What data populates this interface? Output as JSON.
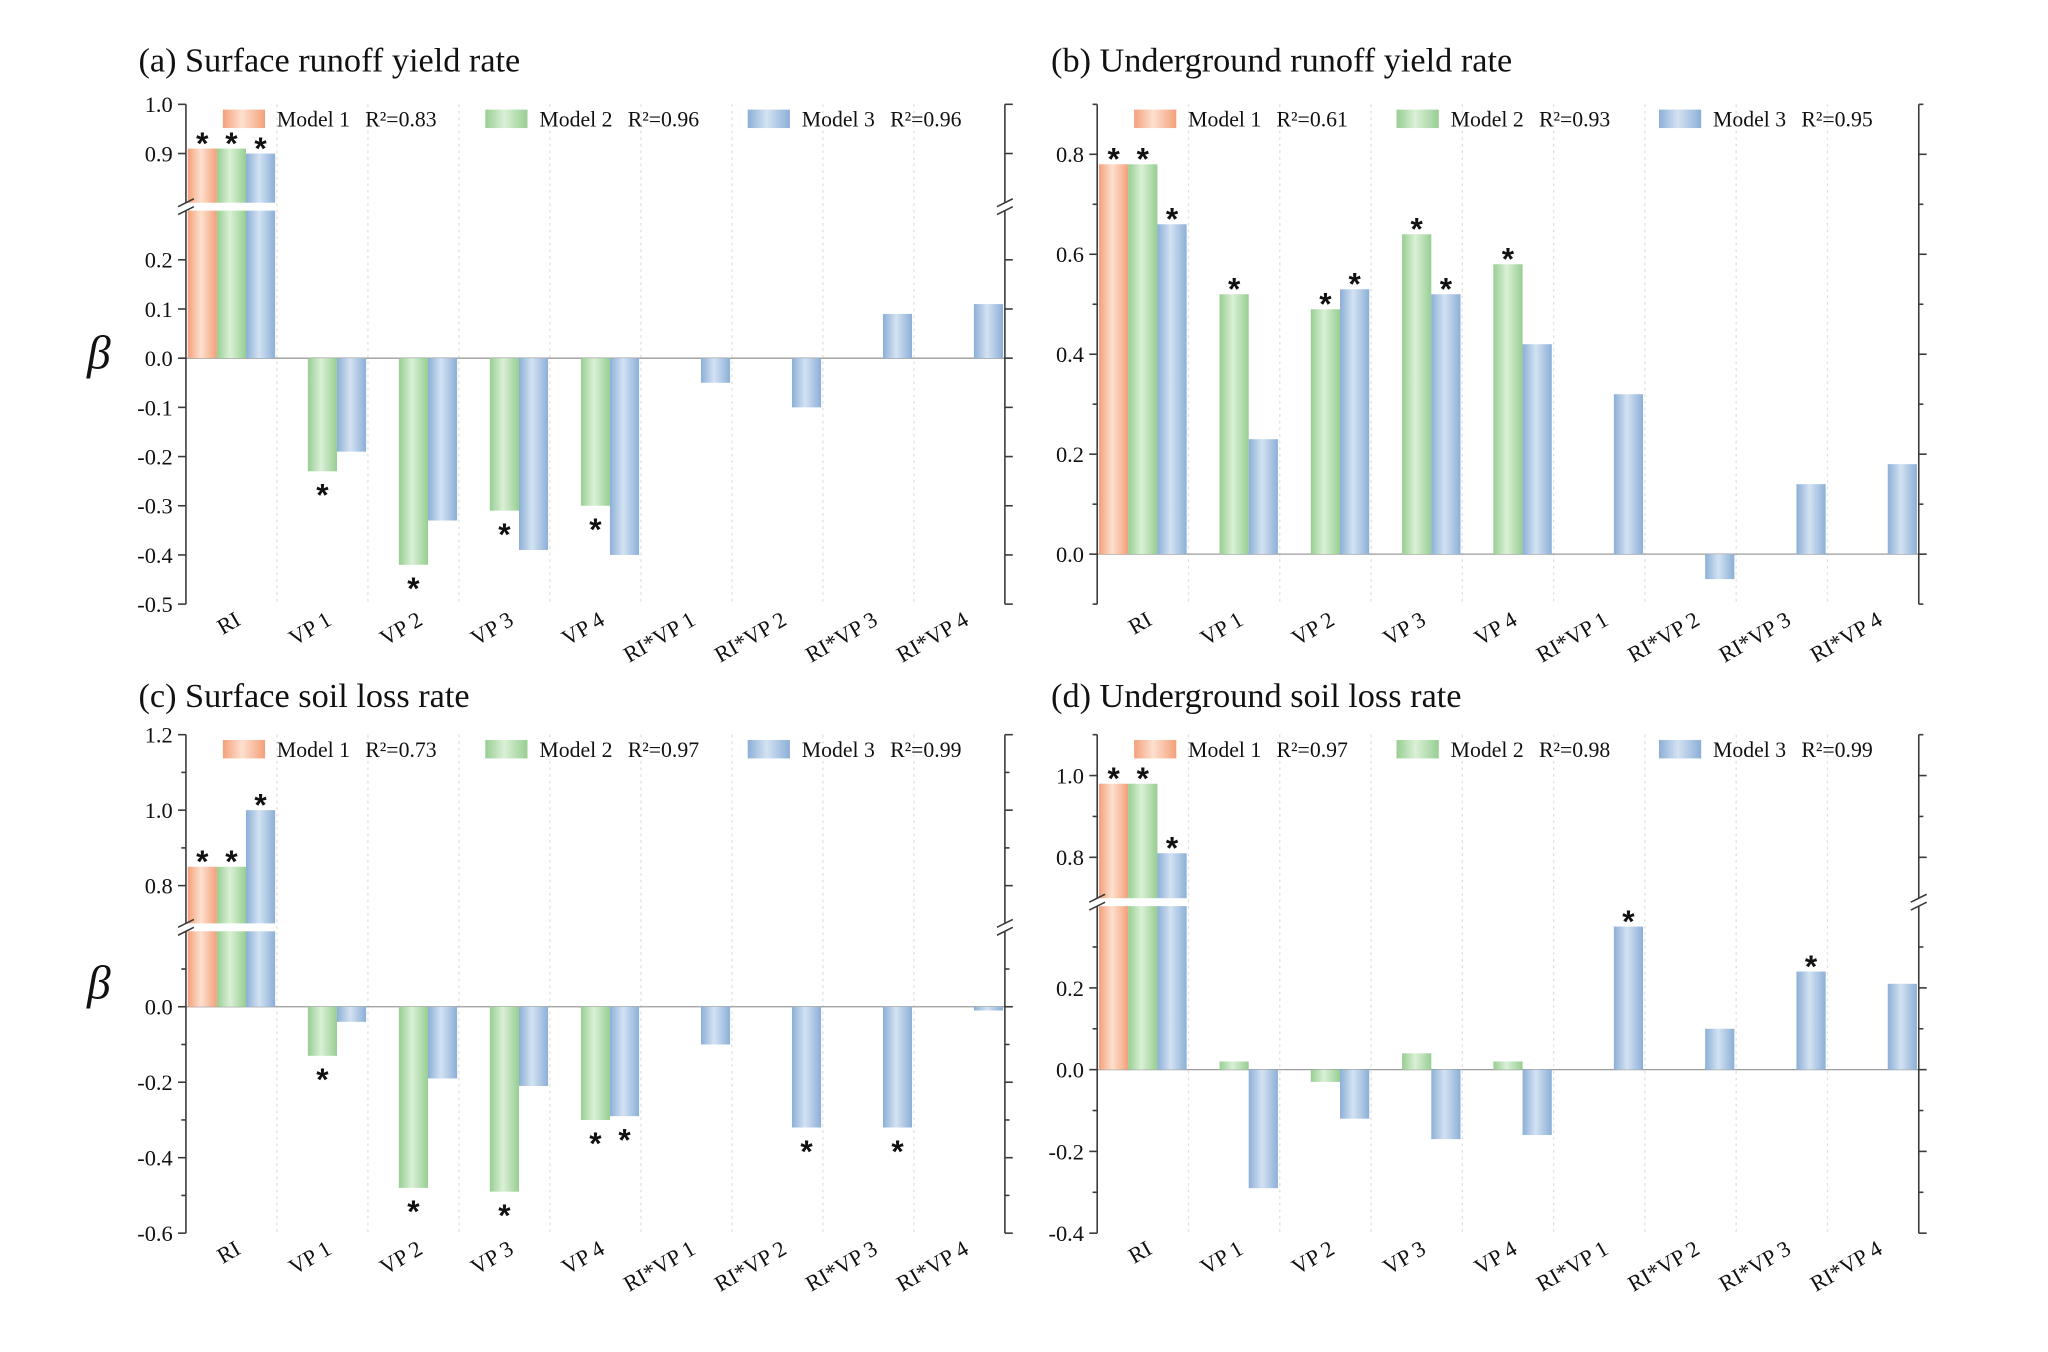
{
  "bar_colors": [
    {
      "edge": "#f4a07a",
      "center": "#fde0cf"
    },
    {
      "edge": "#97ce92",
      "center": "#daf0d6"
    },
    {
      "edge": "#8cafd7",
      "center": "#d3e2f2"
    }
  ],
  "chart_data": [
    {
      "type": "bar",
      "title": "(a) Surface runoff yield rate",
      "ylabel": "β",
      "categories": [
        "RI",
        "VP 1",
        "VP 2",
        "VP 3",
        "VP 4",
        "RI*VP 1",
        "RI*VP 2",
        "RI*VP 3",
        "RI*VP 4"
      ],
      "ylim": [
        -0.5,
        1.0
      ],
      "axis_break": [
        0.3,
        0.8
      ],
      "yticks": [
        1.0,
        0.9,
        0.2,
        0.1,
        0.0,
        -0.1,
        -0.2,
        -0.3,
        -0.4,
        -0.5
      ],
      "ytick_labels": [
        "1.0",
        "0.9",
        "0.2",
        "0.1",
        "0.0",
        "-0.1",
        "-0.2",
        "-0.3",
        "-0.4",
        "-0.5"
      ],
      "grid": true,
      "legend_position": "top",
      "significance_marker": "*",
      "series": [
        {
          "name": "Model 1",
          "r2_label": "R²=0.83",
          "values": [
            0.91,
            null,
            null,
            null,
            null,
            null,
            null,
            null,
            null
          ],
          "significant": [
            true,
            false,
            false,
            false,
            false,
            false,
            false,
            false,
            false
          ]
        },
        {
          "name": "Model 2",
          "r2_label": "R²=0.96",
          "values": [
            0.91,
            -0.23,
            -0.42,
            -0.31,
            -0.3,
            null,
            null,
            null,
            null
          ],
          "significant": [
            true,
            true,
            true,
            true,
            true,
            false,
            false,
            false,
            false
          ]
        },
        {
          "name": "Model 3",
          "r2_label": "R²=0.96",
          "values": [
            0.9,
            -0.19,
            -0.33,
            -0.39,
            -0.4,
            -0.05,
            -0.1,
            0.09,
            0.11
          ],
          "significant": [
            true,
            false,
            false,
            false,
            false,
            false,
            false,
            false,
            false
          ]
        }
      ]
    },
    {
      "type": "bar",
      "title": "(b) Underground runoff yield rate",
      "categories": [
        "RI",
        "VP 1",
        "VP 2",
        "VP 3",
        "VP 4",
        "RI*VP 1",
        "RI*VP 2",
        "RI*VP 3",
        "RI*VP 4"
      ],
      "ylim": [
        -0.1,
        0.9
      ],
      "axis_break": null,
      "yticks": [
        0.8,
        0.6,
        0.4,
        0.2,
        0.0
      ],
      "ytick_labels": [
        "0.8",
        "0.6",
        "0.4",
        "0.2",
        "0.0"
      ],
      "grid": true,
      "legend_position": "top",
      "significance_marker": "*",
      "series": [
        {
          "name": "Model 1",
          "r2_label": "R²=0.61",
          "values": [
            0.78,
            null,
            null,
            null,
            null,
            null,
            null,
            null,
            null
          ],
          "significant": [
            true,
            false,
            false,
            false,
            false,
            false,
            false,
            false,
            false
          ]
        },
        {
          "name": "Model 2",
          "r2_label": "R²=0.93",
          "values": [
            0.78,
            0.52,
            0.49,
            0.64,
            0.58,
            null,
            null,
            null,
            null
          ],
          "significant": [
            true,
            true,
            true,
            true,
            true,
            false,
            false,
            false,
            false
          ]
        },
        {
          "name": "Model 3",
          "r2_label": "R²=0.95",
          "values": [
            0.66,
            0.23,
            0.53,
            0.52,
            0.42,
            0.32,
            -0.05,
            0.14,
            0.18
          ],
          "significant": [
            true,
            false,
            true,
            true,
            false,
            false,
            false,
            false,
            false
          ]
        }
      ]
    },
    {
      "type": "bar",
      "title": "(c) Surface soil loss rate",
      "ylabel": "β",
      "categories": [
        "RI",
        "VP 1",
        "VP 2",
        "VP 3",
        "VP 4",
        "RI*VP 1",
        "RI*VP 2",
        "RI*VP 3",
        "RI*VP 4"
      ],
      "ylim": [
        -0.6,
        1.2
      ],
      "axis_break": [
        0.2,
        0.7
      ],
      "yticks": [
        1.2,
        1.0,
        0.8,
        0.0,
        -0.2,
        -0.4,
        -0.6
      ],
      "ytick_labels": [
        "1.2",
        "1.0",
        "0.8",
        "0.0",
        "-0.2",
        "-0.4",
        "-0.6"
      ],
      "grid": true,
      "legend_position": "top",
      "significance_marker": "*",
      "series": [
        {
          "name": "Model 1",
          "r2_label": "R²=0.73",
          "values": [
            0.85,
            null,
            null,
            null,
            null,
            null,
            null,
            null,
            null
          ],
          "significant": [
            true,
            false,
            false,
            false,
            false,
            false,
            false,
            false,
            false
          ]
        },
        {
          "name": "Model 2",
          "r2_label": "R²=0.97",
          "values": [
            0.85,
            -0.13,
            -0.48,
            -0.49,
            -0.3,
            null,
            null,
            null,
            null
          ],
          "significant": [
            true,
            true,
            true,
            true,
            true,
            false,
            false,
            false,
            false
          ]
        },
        {
          "name": "Model 3",
          "r2_label": "R²=0.99",
          "values": [
            1.0,
            -0.04,
            -0.19,
            -0.21,
            -0.29,
            -0.1,
            -0.32,
            -0.32,
            -0.01
          ],
          "significant": [
            true,
            false,
            false,
            false,
            true,
            false,
            true,
            true,
            false
          ]
        }
      ]
    },
    {
      "type": "bar",
      "title": "(d) Underground soil loss rate",
      "categories": [
        "RI",
        "VP 1",
        "VP 2",
        "VP 3",
        "VP 4",
        "RI*VP 1",
        "RI*VP 2",
        "RI*VP 3",
        "RI*VP 4"
      ],
      "ylim": [
        -0.4,
        1.1
      ],
      "axis_break": [
        0.4,
        0.7
      ],
      "yticks": [
        1.0,
        0.8,
        0.2,
        0.0,
        -0.2,
        -0.4
      ],
      "ytick_labels": [
        "1.0",
        "0.8",
        "0.2",
        "0.0",
        "-0.2",
        "-0.4"
      ],
      "grid": true,
      "legend_position": "top",
      "significance_marker": "*",
      "series": [
        {
          "name": "Model 1",
          "r2_label": "R²=0.97",
          "values": [
            0.98,
            null,
            null,
            null,
            null,
            null,
            null,
            null,
            null
          ],
          "significant": [
            true,
            false,
            false,
            false,
            false,
            false,
            false,
            false,
            false
          ]
        },
        {
          "name": "Model 2",
          "r2_label": "R²=0.98",
          "values": [
            0.98,
            0.02,
            -0.03,
            0.04,
            0.02,
            null,
            null,
            null,
            null
          ],
          "significant": [
            true,
            false,
            false,
            false,
            false,
            false,
            false,
            false,
            false
          ]
        },
        {
          "name": "Model 3",
          "r2_label": "R²=0.99",
          "values": [
            0.81,
            -0.29,
            -0.12,
            -0.17,
            -0.16,
            0.35,
            0.1,
            0.24,
            0.21
          ],
          "significant": [
            true,
            false,
            false,
            false,
            false,
            true,
            false,
            true,
            false
          ]
        }
      ]
    }
  ]
}
